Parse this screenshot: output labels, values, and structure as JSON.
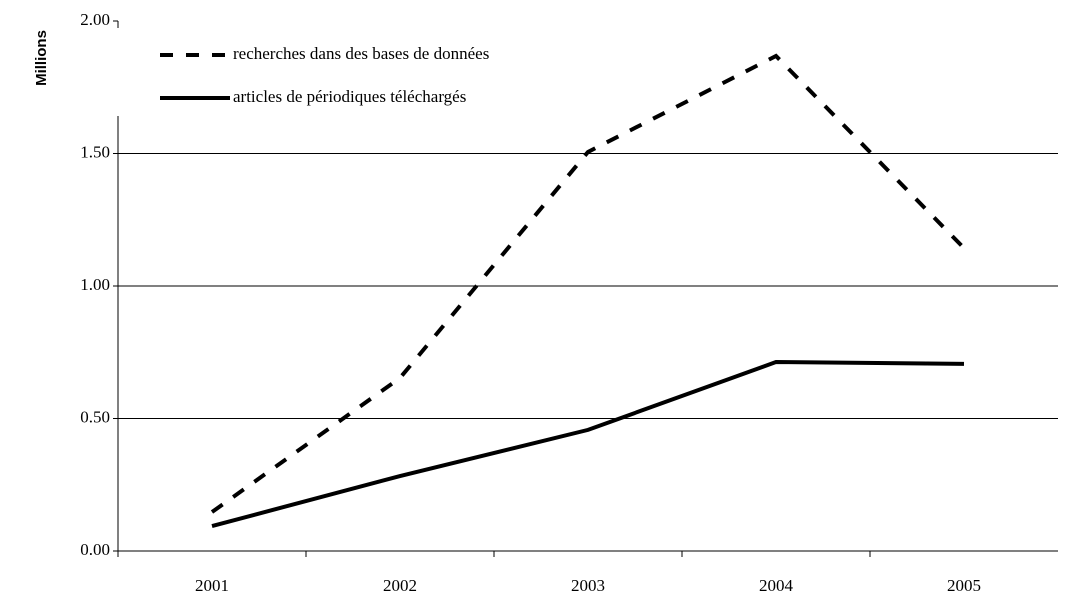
{
  "chart_data": {
    "type": "line",
    "y_label": "Millions",
    "categories": [
      "2001",
      "2002",
      "2003",
      "2004",
      "2005"
    ],
    "series": [
      {
        "name": "recherches dans des bases de données",
        "color": "#000000",
        "dash": true,
        "values": [
          0.147,
          0.653,
          1.506,
          1.868,
          1.143
        ]
      },
      {
        "name": "articles de périodiques téléchargés",
        "color": "#000000",
        "dash": false,
        "values": [
          0.094,
          0.283,
          0.457,
          0.713,
          0.706
        ]
      }
    ],
    "ylim": [
      0,
      2
    ],
    "yticks": [
      {
        "value": 0,
        "label": "0.00"
      },
      {
        "value": 0.5,
        "label": "0.50"
      },
      {
        "value": 1,
        "label": "1.00"
      },
      {
        "value": 1.5,
        "label": "1.50"
      },
      {
        "value": 2,
        "label": "2.00"
      }
    ],
    "grid": true,
    "legend": "upper left"
  }
}
